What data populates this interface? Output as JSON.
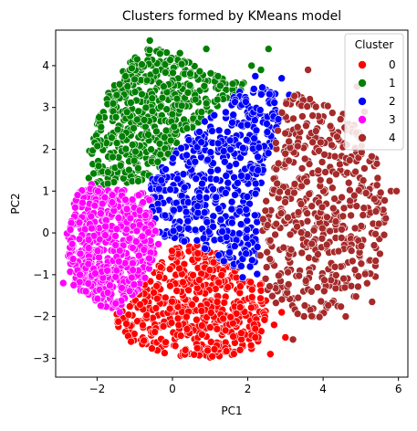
{
  "chart_data": {
    "type": "scatter",
    "title": "Clusters formed by KMeans model",
    "xlabel": "PC1",
    "ylabel": "PC2",
    "xlim": [
      -3.1,
      6.25
    ],
    "ylim": [
      -3.45,
      4.85
    ],
    "xticks": [
      -2,
      0,
      2,
      4,
      6
    ],
    "yticks": [
      -3,
      -2,
      -1,
      0,
      1,
      2,
      3,
      4
    ],
    "grid": false,
    "legend": {
      "title": "Cluster",
      "placement": "top-right"
    },
    "series": [
      {
        "name": "0",
        "color": "#ff0000",
        "polygon": [
          [
            -1.5,
            -1.9
          ],
          [
            -0.9,
            -1.5
          ],
          [
            -0.8,
            -1.3
          ],
          [
            -0.6,
            -1.0
          ],
          [
            -0.2,
            -0.6
          ],
          [
            0.05,
            -0.35
          ],
          [
            0.4,
            -0.2
          ],
          [
            0.9,
            -0.35
          ],
          [
            1.4,
            -0.6
          ],
          [
            1.9,
            -0.9
          ],
          [
            2.4,
            -1.2
          ],
          [
            2.5,
            -1.6
          ],
          [
            2.5,
            -2.2
          ],
          [
            2.3,
            -2.7
          ],
          [
            1.8,
            -2.9
          ],
          [
            0.8,
            -3.0
          ],
          [
            -0.2,
            -2.9
          ],
          [
            -1.0,
            -2.6
          ],
          [
            -1.5,
            -2.3
          ]
        ],
        "outliers": [
          [
            2.7,
            -2.2
          ],
          [
            2.6,
            -2.9
          ],
          [
            3.0,
            -2.5
          ],
          [
            2.9,
            -1.9
          ],
          [
            -1.1,
            -2.6
          ],
          [
            2.2,
            -2.5
          ]
        ]
      },
      {
        "name": "1",
        "color": "#008000",
        "polygon": [
          [
            -2.2,
            1.2
          ],
          [
            -2.3,
            1.6
          ],
          [
            -2.1,
            2.4
          ],
          [
            -1.8,
            3.2
          ],
          [
            -1.4,
            3.8
          ],
          [
            -1.0,
            4.2
          ],
          [
            -0.6,
            4.5
          ],
          [
            -0.1,
            4.3
          ],
          [
            0.5,
            4.1
          ],
          [
            1.1,
            3.8
          ],
          [
            1.6,
            3.6
          ],
          [
            2.1,
            3.6
          ],
          [
            1.4,
            3.1
          ],
          [
            0.9,
            2.7
          ],
          [
            0.4,
            2.3
          ],
          [
            -0.2,
            1.7
          ],
          [
            -0.5,
            1.3
          ],
          [
            -1.0,
            1.1
          ],
          [
            -1.6,
            1.0
          ]
        ],
        "outliers": [
          [
            2.55,
            4.4
          ],
          [
            0.9,
            4.4
          ],
          [
            2.35,
            3.9
          ],
          [
            -0.6,
            4.6
          ],
          [
            2.1,
            4.0
          ],
          [
            0.2,
            4.3
          ]
        ]
      },
      {
        "name": "2",
        "color": "#0000ff",
        "polygon": [
          [
            -0.6,
            1.2
          ],
          [
            -0.2,
            1.7
          ],
          [
            0.4,
            2.3
          ],
          [
            0.9,
            2.7
          ],
          [
            1.4,
            3.1
          ],
          [
            2.1,
            3.6
          ],
          [
            2.7,
            3.4
          ],
          [
            3.1,
            2.9
          ],
          [
            2.7,
            2.2
          ],
          [
            2.5,
            1.5
          ],
          [
            2.3,
            0.6
          ],
          [
            2.3,
            -0.4
          ],
          [
            2.3,
            -1.0
          ],
          [
            1.9,
            -1.1
          ],
          [
            1.4,
            -0.7
          ],
          [
            0.9,
            -0.4
          ],
          [
            0.4,
            -0.25
          ],
          [
            -0.3,
            -0.1
          ],
          [
            -0.55,
            0.5
          ]
        ],
        "outliers": [
          [
            2.9,
            3.7
          ],
          [
            3.1,
            3.3
          ],
          [
            2.7,
            -1.3
          ],
          [
            2.2,
            3.75
          ]
        ]
      },
      {
        "name": "3",
        "color": "#ff00ff",
        "polygon": [
          [
            -2.2,
            1.2
          ],
          [
            -1.6,
            1.05
          ],
          [
            -1.0,
            1.0
          ],
          [
            -0.6,
            1.0
          ],
          [
            -0.5,
            0.3
          ],
          [
            -0.35,
            -0.25
          ],
          [
            -0.6,
            -0.85
          ],
          [
            -0.9,
            -1.4
          ],
          [
            -1.3,
            -1.7
          ],
          [
            -1.7,
            -1.85
          ],
          [
            -2.2,
            -1.6
          ],
          [
            -2.7,
            -1.2
          ],
          [
            -2.8,
            -0.4
          ],
          [
            -2.8,
            0.4
          ],
          [
            -2.6,
            0.9
          ]
        ],
        "outliers": [
          [
            -2.9,
            -1.2
          ],
          [
            -1.4,
            -1.9
          ]
        ]
      },
      {
        "name": "4",
        "color": "#a52a2a",
        "polygon": [
          [
            2.9,
            3.2
          ],
          [
            3.4,
            3.4
          ],
          [
            3.8,
            3.2
          ],
          [
            4.4,
            3.0
          ],
          [
            5.1,
            2.4
          ],
          [
            5.5,
            1.6
          ],
          [
            5.7,
            0.6
          ],
          [
            5.6,
            -0.4
          ],
          [
            5.4,
            -1.1
          ],
          [
            4.9,
            -1.6
          ],
          [
            4.3,
            -1.9
          ],
          [
            3.7,
            -2.1
          ],
          [
            3.1,
            -2.0
          ],
          [
            2.5,
            -1.5
          ],
          [
            2.3,
            -0.9
          ],
          [
            2.35,
            0.2
          ],
          [
            2.5,
            1.2
          ],
          [
            2.7,
            2.2
          ]
        ],
        "outliers": [
          [
            3.6,
            3.9
          ],
          [
            5.8,
            1.0
          ],
          [
            4.9,
            3.5
          ],
          [
            5.95,
            1.0
          ],
          [
            3.2,
            -2.55
          ],
          [
            5.3,
            -1.65
          ],
          [
            5.1,
            2.9
          ],
          [
            4.6,
            -2.0
          ]
        ]
      }
    ]
  }
}
